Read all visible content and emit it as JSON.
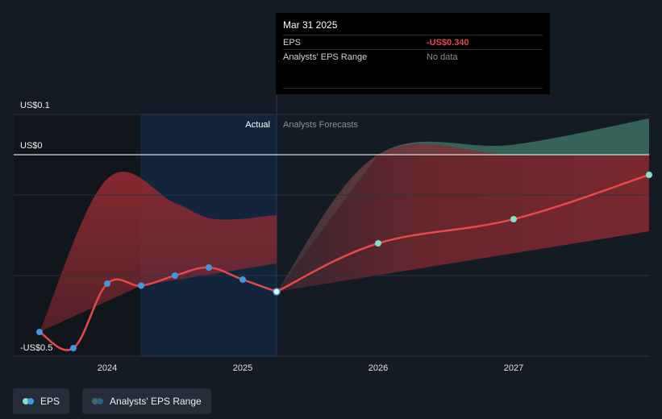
{
  "chart_data": {
    "type": "line",
    "y_axis": {
      "top_label": "US$0.1",
      "zero_label": "US$0",
      "bottom_label": "-US$0.5",
      "ylim": [
        -0.5,
        0.1
      ]
    },
    "x_ticks": [
      "2024",
      "2025",
      "2026",
      "2027"
    ],
    "zones": {
      "actual_label": "Actual",
      "forecast_label": "Analysts Forecasts"
    },
    "eps_actual": [
      {
        "x": 2023.5,
        "y": -0.44
      },
      {
        "x": 2023.75,
        "y": -0.48
      },
      {
        "x": 2024.0,
        "y": -0.32
      },
      {
        "x": 2024.25,
        "y": -0.325
      },
      {
        "x": 2024.5,
        "y": -0.3
      },
      {
        "x": 2024.75,
        "y": -0.28
      },
      {
        "x": 2025.0,
        "y": -0.31
      },
      {
        "x": 2025.25,
        "y": -0.34
      }
    ],
    "eps_forecast": [
      {
        "x": 2025.25,
        "y": -0.34
      },
      {
        "x": 2026.0,
        "y": -0.22
      },
      {
        "x": 2027.0,
        "y": -0.16
      },
      {
        "x": 2028.0,
        "y": -0.05
      }
    ],
    "range_actual_high": [
      {
        "x": 2023.5,
        "y": -0.44
      },
      {
        "x": 2024.0,
        "y": -0.06
      },
      {
        "x": 2024.5,
        "y": -0.12
      },
      {
        "x": 2024.8,
        "y": -0.16
      },
      {
        "x": 2025.25,
        "y": -0.15
      }
    ],
    "range_actual_low": [
      {
        "x": 2023.5,
        "y": -0.44
      },
      {
        "x": 2024.25,
        "y": -0.325
      },
      {
        "x": 2025.25,
        "y": -0.27
      }
    ],
    "range_forecast_high": [
      {
        "x": 2025.25,
        "y": -0.34
      },
      {
        "x": 2026.0,
        "y": 0.0
      },
      {
        "x": 2027.0,
        "y": 0.025
      },
      {
        "x": 2028.0,
        "y": 0.09
      }
    ],
    "range_forecast_low": [
      {
        "x": 2025.25,
        "y": -0.34
      },
      {
        "x": 2028.0,
        "y": -0.19
      }
    ],
    "colors": {
      "eps_line": "#e8474b",
      "actual_dot": "#3b9ae1",
      "forecast_dot": "#7fe3c6",
      "range_red": "#8a2a30",
      "range_teal": "#3b6e63"
    }
  },
  "tooltip": {
    "date": "Mar 31 2025",
    "eps_label": "EPS",
    "eps_value": "-US$0.340",
    "range_label": "Analysts' EPS Range",
    "range_value": "No data"
  },
  "legend": {
    "eps_label": "EPS",
    "range_label": "Analysts' EPS Range"
  }
}
